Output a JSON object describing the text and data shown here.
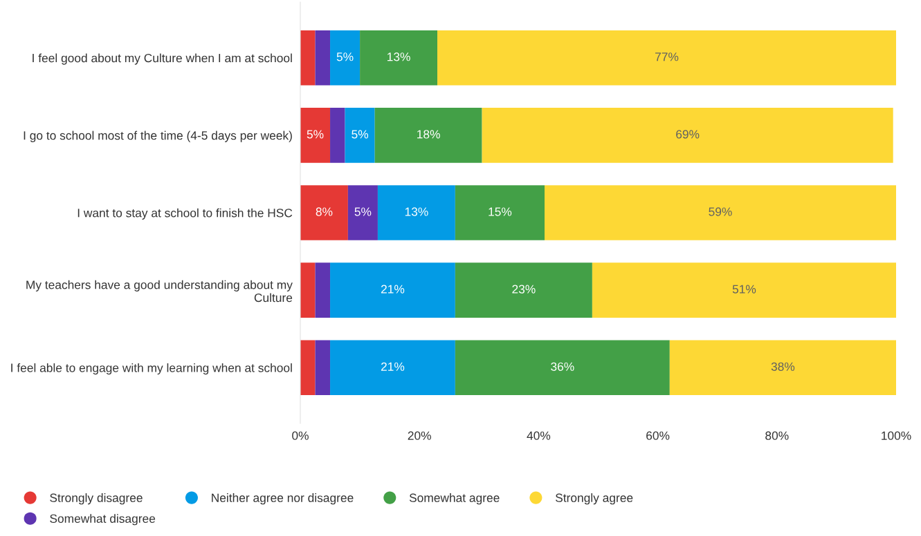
{
  "chart_data": {
    "type": "bar",
    "orientation": "horizontal",
    "stacked": true,
    "categories": [
      "I feel good about my Culture when I am at school",
      "I go to school most of the time (4-5 days per week)",
      "I want to stay at school to finish the HSC",
      "My teachers have a good understanding about my Culture",
      "I feel able to engage with my learning when at school"
    ],
    "series": [
      {
        "name": "Strongly disagree",
        "color": "#e53935",
        "values": [
          2.5,
          5,
          8,
          2.5,
          2.5
        ],
        "value_labels": [
          null,
          "5%",
          "8%",
          null,
          null
        ]
      },
      {
        "name": "Somewhat disagree",
        "color": "#5e35b1",
        "values": [
          2.5,
          2.5,
          5,
          2.5,
          2.5
        ],
        "value_labels": [
          null,
          null,
          "5%",
          null,
          null
        ]
      },
      {
        "name": "Neither agree nor disagree",
        "color": "#039be5",
        "values": [
          5,
          5,
          13,
          21,
          21
        ],
        "value_labels": [
          "5%",
          "5%",
          "13%",
          "21%",
          "21%"
        ]
      },
      {
        "name": "Somewhat agree",
        "color": "#43a047",
        "values": [
          13,
          18,
          15,
          23,
          36
        ],
        "value_labels": [
          "13%",
          "18%",
          "15%",
          "23%",
          "36%"
        ]
      },
      {
        "name": "Strongly agree",
        "color": "#fdd835",
        "values": [
          77,
          69,
          59,
          51,
          38
        ],
        "value_labels": [
          "77%",
          "69%",
          "59%",
          "51%",
          "38%"
        ]
      }
    ],
    "xlim": [
      0,
      100
    ],
    "xticks": [
      {
        "value": 0,
        "label": "0%"
      },
      {
        "value": 20,
        "label": "20%"
      },
      {
        "value": 40,
        "label": "40%"
      },
      {
        "value": 60,
        "label": "60%"
      },
      {
        "value": 80,
        "label": "80%"
      },
      {
        "value": 100,
        "label": "100%"
      }
    ],
    "grid": false,
    "legend": "bottom"
  }
}
